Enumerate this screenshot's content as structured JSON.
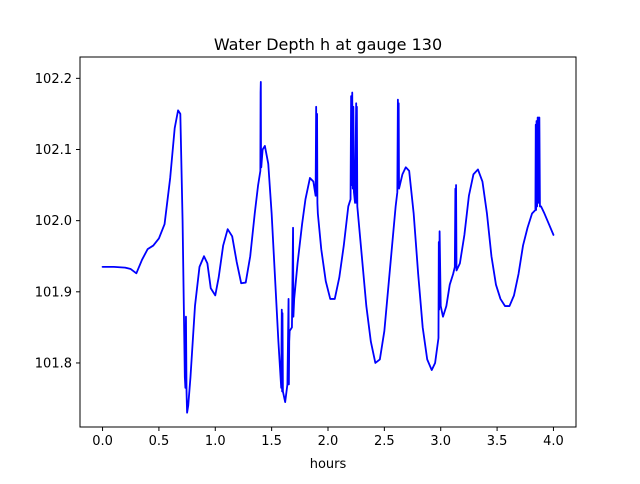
{
  "chart_data": {
    "type": "line",
    "title": "Water Depth h at gauge 130",
    "xlabel": "hours",
    "ylabel": "",
    "xlim": [
      -0.2,
      4.2
    ],
    "ylim": [
      101.71,
      102.23
    ],
    "xticks": [
      0.0,
      0.5,
      1.0,
      1.5,
      2.0,
      2.5,
      3.0,
      3.5,
      4.0
    ],
    "xtick_labels": [
      "0.0",
      "0.5",
      "1.0",
      "1.5",
      "2.0",
      "2.5",
      "3.0",
      "3.5",
      "4.0"
    ],
    "yticks": [
      101.8,
      101.9,
      102.0,
      102.1,
      102.2
    ],
    "ytick_labels": [
      "101.8",
      "101.9",
      "102.0",
      "102.1",
      "102.2"
    ],
    "grid": false,
    "legend": "none",
    "series": [
      {
        "color": "#0000ff",
        "x": [
          0.0,
          0.1,
          0.2,
          0.25,
          0.3,
          0.35,
          0.4,
          0.45,
          0.5,
          0.55,
          0.6,
          0.64,
          0.67,
          0.69,
          0.71,
          0.73,
          0.735,
          0.74,
          0.745,
          0.75,
          0.76,
          0.78,
          0.82,
          0.86,
          0.9,
          0.93,
          0.96,
          1.0,
          1.03,
          1.07,
          1.11,
          1.15,
          1.19,
          1.23,
          1.27,
          1.31,
          1.35,
          1.38,
          1.4,
          1.402,
          1.404,
          1.406,
          1.408,
          1.42,
          1.44,
          1.47,
          1.5,
          1.53,
          1.56,
          1.585,
          1.59,
          1.593,
          1.596,
          1.6,
          1.62,
          1.64,
          1.65,
          1.653,
          1.656,
          1.66,
          1.68,
          1.69,
          1.693,
          1.7,
          1.73,
          1.77,
          1.8,
          1.84,
          1.87,
          1.89,
          1.895,
          1.9,
          1.903,
          1.906,
          1.91,
          1.94,
          1.98,
          2.02,
          2.06,
          2.1,
          2.14,
          2.18,
          2.2,
          2.205,
          2.21,
          2.215,
          2.22,
          2.225,
          2.23,
          2.24,
          2.25,
          2.253,
          2.256,
          2.26,
          2.3,
          2.34,
          2.38,
          2.42,
          2.46,
          2.5,
          2.54,
          2.58,
          2.6,
          2.615,
          2.62,
          2.623,
          2.627,
          2.63,
          2.66,
          2.69,
          2.72,
          2.76,
          2.8,
          2.84,
          2.88,
          2.92,
          2.95,
          2.98,
          2.983,
          2.986,
          2.99,
          3.0,
          3.02,
          3.05,
          3.08,
          3.11,
          3.125,
          3.13,
          3.133,
          3.136,
          3.14,
          3.17,
          3.21,
          3.25,
          3.29,
          3.33,
          3.37,
          3.41,
          3.45,
          3.49,
          3.53,
          3.57,
          3.61,
          3.65,
          3.69,
          3.73,
          3.77,
          3.81,
          3.84,
          3.843,
          3.846,
          3.85,
          3.855,
          3.86,
          3.863,
          3.866,
          3.87,
          3.875,
          3.88,
          3.89,
          3.92,
          3.96,
          4.0
        ],
        "y": [
          101.935,
          101.935,
          101.934,
          101.932,
          101.926,
          101.945,
          101.96,
          101.965,
          101.975,
          101.995,
          102.06,
          102.13,
          102.155,
          102.15,
          102.0,
          101.78,
          101.765,
          101.865,
          101.76,
          101.73,
          101.74,
          101.78,
          101.88,
          101.935,
          101.95,
          101.94,
          101.905,
          101.895,
          101.92,
          101.965,
          101.988,
          101.978,
          101.942,
          101.912,
          101.913,
          101.95,
          102.01,
          102.05,
          102.07,
          102.18,
          102.195,
          102.08,
          102.075,
          102.1,
          102.105,
          102.08,
          102.01,
          101.92,
          101.83,
          101.765,
          101.875,
          101.76,
          101.87,
          101.76,
          101.745,
          101.77,
          101.89,
          101.77,
          101.83,
          101.845,
          101.85,
          101.99,
          101.865,
          101.89,
          101.94,
          101.995,
          102.03,
          102.06,
          102.055,
          102.035,
          102.16,
          102.035,
          102.15,
          102.025,
          102.01,
          101.96,
          101.915,
          101.89,
          101.89,
          101.92,
          101.965,
          102.02,
          102.03,
          102.175,
          102.05,
          102.18,
          102.045,
          102.16,
          102.04,
          102.025,
          102.165,
          102.025,
          102.16,
          102.02,
          101.95,
          101.88,
          101.83,
          101.8,
          101.805,
          101.845,
          101.915,
          101.985,
          102.02,
          102.04,
          102.17,
          102.05,
          102.165,
          102.045,
          102.065,
          102.075,
          102.07,
          102.01,
          101.925,
          101.85,
          101.805,
          101.79,
          101.8,
          101.835,
          101.97,
          101.875,
          101.985,
          101.88,
          101.865,
          101.88,
          101.91,
          101.925,
          101.935,
          102.045,
          101.935,
          102.05,
          101.93,
          101.94,
          101.98,
          102.035,
          102.065,
          102.072,
          102.055,
          102.01,
          101.95,
          101.91,
          101.89,
          101.88,
          101.88,
          101.895,
          101.925,
          101.965,
          101.99,
          102.01,
          102.015,
          102.135,
          102.015,
          102.14,
          102.02,
          102.145,
          102.03,
          102.145,
          102.025,
          102.145,
          102.02,
          102.02,
          102.01,
          101.995,
          101.98
        ]
      }
    ]
  }
}
